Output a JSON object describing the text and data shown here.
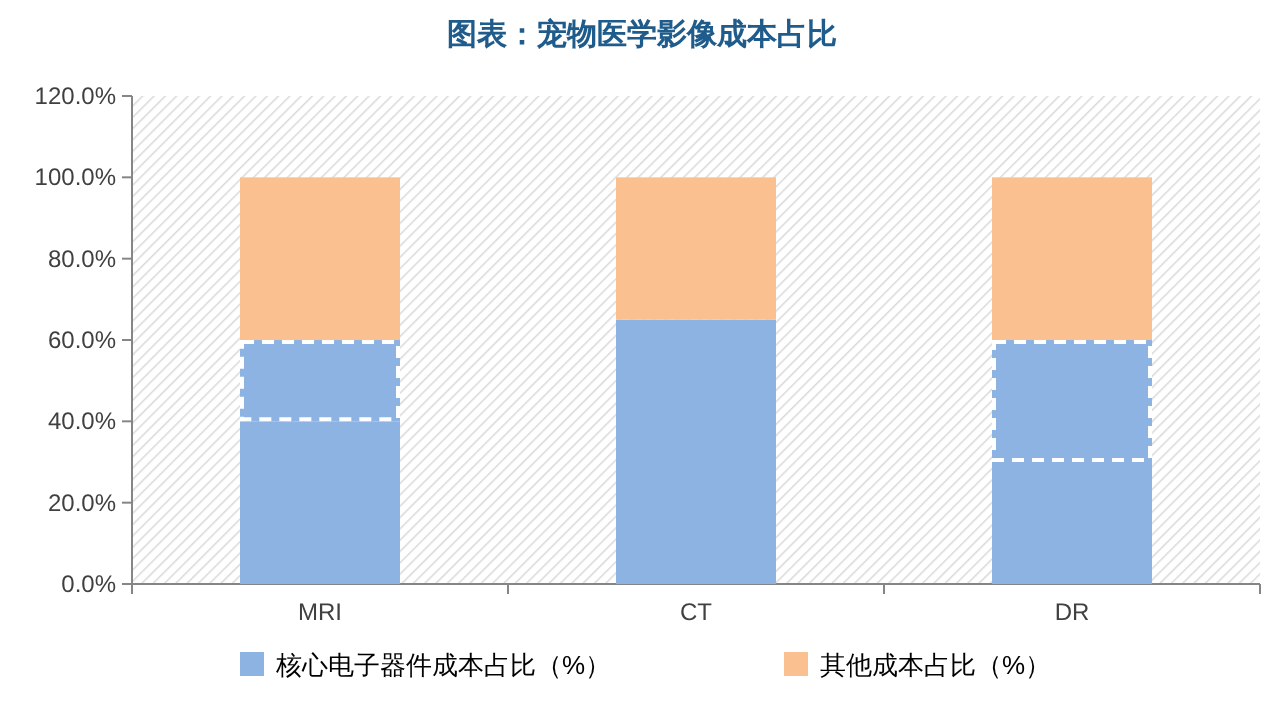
{
  "chart_data": {
    "type": "bar",
    "title": "图表：宠物医学影像成本占比",
    "categories": [
      "MRI",
      "CT",
      "DR"
    ],
    "stacked": true,
    "legend": "bottom",
    "series": [
      {
        "name": "核心电子器件成本占比（%）",
        "color": "#8db3e2",
        "values": [
          40,
          65,
          30
        ]
      },
      {
        "color": "#8db3e2",
        "values": [
          20,
          null,
          30
        ],
        "line_style": "dashed"
      },
      {
        "name": "其他成本占比（%）",
        "color": "#fac090",
        "values": [
          40,
          35,
          40
        ]
      }
    ],
    "ylim": [
      0,
      120
    ],
    "yticks": [
      {
        "value": 0,
        "label": "0.0%"
      },
      {
        "value": 20,
        "label": "20.0%"
      },
      {
        "value": 40,
        "label": "40.0%"
      },
      {
        "value": 60,
        "label": "60.0%"
      },
      {
        "value": 80,
        "label": "80.0%"
      },
      {
        "value": 100,
        "label": "100.0%"
      },
      {
        "value": 120,
        "label": "120.0%"
      }
    ]
  }
}
